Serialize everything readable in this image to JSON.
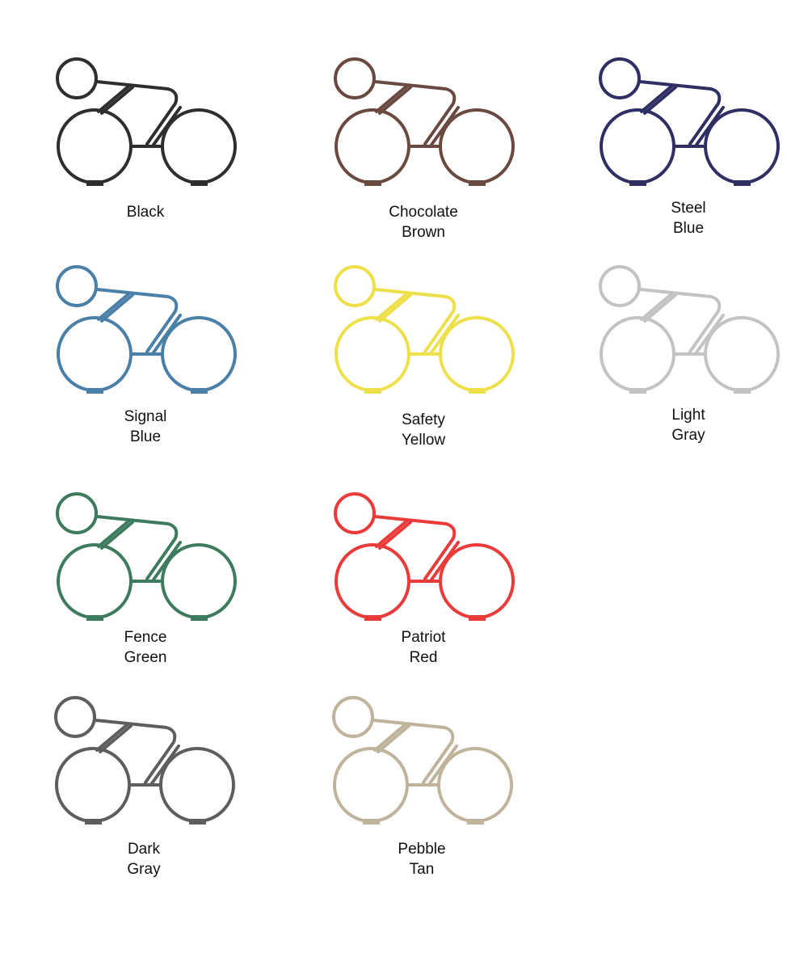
{
  "swatches": [
    {
      "line1": "Black",
      "line2": "",
      "color": "#2e2e2e"
    },
    {
      "line1": "Chocolate",
      "line2": "Brown",
      "color": "#6a4a40"
    },
    {
      "line1": "Steel",
      "line2": "Blue",
      "color": "#2f2f63"
    },
    {
      "line1": "Signal",
      "line2": "Blue",
      "color": "#4a7fa8"
    },
    {
      "line1": "Safety",
      "line2": "Yellow",
      "color": "#ede04a"
    },
    {
      "line1": "Light",
      "line2": "Gray",
      "color": "#c3c3c3"
    },
    {
      "line1": "Fence",
      "line2": "Green",
      "color": "#3e7a5e"
    },
    {
      "line1": "Patriot",
      "line2": "Red",
      "color": "#ea3a3a"
    },
    {
      "line1": "Dark",
      "line2": "Gray",
      "color": "#5e5e5e"
    },
    {
      "line1": "Pebble",
      "line2": "Tan",
      "color": "#bfb39b"
    }
  ]
}
